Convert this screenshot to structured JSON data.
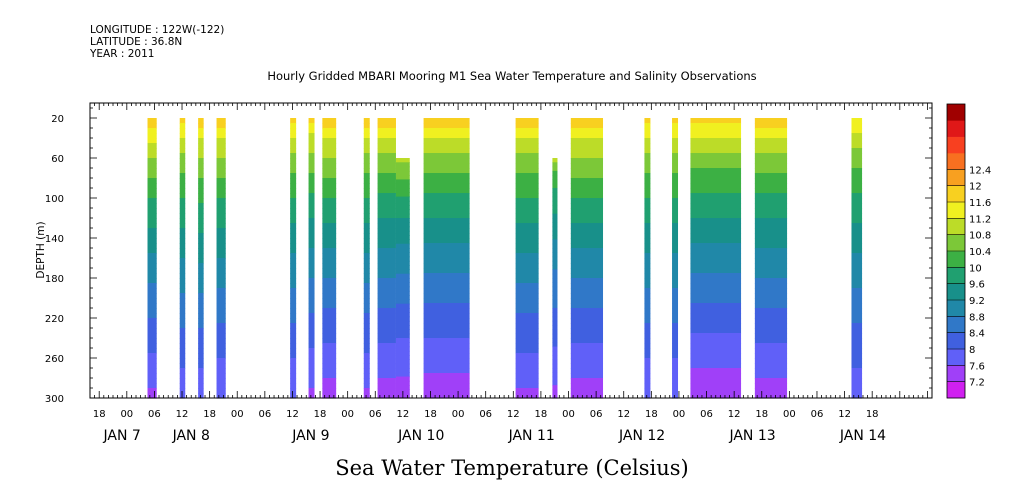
{
  "header": {
    "longitude": "LONGITUDE : 122W(-122)",
    "latitude": "LATITUDE : 36.8N",
    "year": "YEAR : 2011"
  },
  "chart_data": {
    "type": "heatmap",
    "title": "Hourly Gridded MBARI Mooring M1 Sea Water Temperature and Salinity Observations",
    "bottom_title": "Sea Water Temperature (Celsius)",
    "ylabel": "DEPTH (m)",
    "y_inverted": true,
    "ylim": [
      300,
      5
    ],
    "y_ticks": [
      20,
      60,
      100,
      140,
      180,
      220,
      260,
      300
    ],
    "x_hours_range": [
      -8,
      175
    ],
    "x_hour_tick_labels": [
      "18",
      "00",
      "06",
      "12",
      "18",
      "00",
      "06",
      "12",
      "18",
      "00",
      "06",
      "12",
      "18",
      "00",
      "06",
      "12",
      "18",
      "00",
      "06",
      "12",
      "18",
      "00",
      "06",
      "12",
      "18",
      "00",
      "06",
      "12",
      "18"
    ],
    "x_hour_tick_positions_hours": [
      -6,
      0,
      6,
      12,
      18,
      24,
      30,
      36,
      42,
      48,
      54,
      60,
      66,
      72,
      78,
      84,
      90,
      96,
      102,
      108,
      114,
      120,
      126,
      132,
      138,
      144,
      150,
      156,
      162
    ],
    "day_labels": [
      {
        "text": "JAN  7",
        "hour": -1
      },
      {
        "text": "JAN  8",
        "hour": 14
      },
      {
        "text": "JAN  9",
        "hour": 40
      },
      {
        "text": "JAN 10",
        "hour": 64
      },
      {
        "text": "JAN 11",
        "hour": 88
      },
      {
        "text": "JAN 12",
        "hour": 112
      },
      {
        "text": "JAN 13",
        "hour": 136
      },
      {
        "text": "JAN 14",
        "hour": 160
      }
    ],
    "colorbar": {
      "levels": [
        7.2,
        7.6,
        8,
        8.4,
        8.8,
        9.2,
        9.6,
        10,
        10.4,
        10.8,
        11.2,
        11.6,
        12,
        12.4
      ],
      "colors": [
        "#d020f0",
        "#a040f8",
        "#6060f8",
        "#4060e0",
        "#3078c8",
        "#2088a8",
        "#18908a",
        "#20a070",
        "#3cb044",
        "#7cc838",
        "#bcdc28",
        "#f0f020",
        "#f8d020",
        "#f8a020",
        "#f87020",
        "#f84020",
        "#e01818",
        "#a00000"
      ]
    },
    "data_blocks": [
      {
        "start": 4.5,
        "end": 6.5,
        "top": 20,
        "bottom": 300,
        "surface": 12.2,
        "bottom_temp": 7.5
      },
      {
        "start": 11.5,
        "end": 12.7,
        "top": 20,
        "bottom": 300,
        "surface": 12.0,
        "bottom_temp": 7.7
      },
      {
        "start": 15.5,
        "end": 16.7,
        "top": 20,
        "bottom": 300,
        "surface": 12.1,
        "bottom_temp": 7.7
      },
      {
        "start": 19.5,
        "end": 21.5,
        "top": 20,
        "bottom": 300,
        "surface": 12.1,
        "bottom_temp": 7.6
      },
      {
        "start": 35.5,
        "end": 36.8,
        "top": 20,
        "bottom": 300,
        "surface": 12.0,
        "bottom_temp": 7.6
      },
      {
        "start": 39.5,
        "end": 40.8,
        "top": 20,
        "bottom": 300,
        "surface": 12.0,
        "bottom_temp": 7.5
      },
      {
        "start": 42.5,
        "end": 45.5,
        "top": 20,
        "bottom": 300,
        "surface": 12.2,
        "bottom_temp": 7.4
      },
      {
        "start": 51.5,
        "end": 52.8,
        "top": 20,
        "bottom": 300,
        "surface": 12.1,
        "bottom_temp": 7.5
      },
      {
        "start": 54.5,
        "end": 58.5,
        "top": 20,
        "bottom": 300,
        "surface": 12.1,
        "bottom_temp": 7.4
      },
      {
        "start": 58.5,
        "end": 61.5,
        "top": 60,
        "bottom": 300,
        "surface": 11.2,
        "bottom_temp": 7.4
      },
      {
        "start": 64.5,
        "end": 74.5,
        "top": 20,
        "bottom": 300,
        "surface": 12.2,
        "bottom_temp": 7.3
      },
      {
        "start": 84.5,
        "end": 89.5,
        "top": 20,
        "bottom": 300,
        "surface": 12.1,
        "bottom_temp": 7.5
      },
      {
        "start": 92.5,
        "end": 93.6,
        "top": 60,
        "bottom": 300,
        "surface": 11.0,
        "bottom_temp": 7.5
      },
      {
        "start": 96.5,
        "end": 103.5,
        "top": 20,
        "bottom": 300,
        "surface": 12.2,
        "bottom_temp": 7.4
      },
      {
        "start": 112.5,
        "end": 113.8,
        "top": 20,
        "bottom": 300,
        "surface": 12.0,
        "bottom_temp": 7.6
      },
      {
        "start": 118.5,
        "end": 119.8,
        "top": 20,
        "bottom": 300,
        "surface": 12.0,
        "bottom_temp": 7.6
      },
      {
        "start": 122.5,
        "end": 133.5,
        "top": 20,
        "bottom": 300,
        "surface": 12.1,
        "bottom_temp": 7.3
      },
      {
        "start": 136.5,
        "end": 143.5,
        "top": 20,
        "bottom": 300,
        "surface": 12.1,
        "bottom_temp": 7.4
      },
      {
        "start": 157.5,
        "end": 159.8,
        "top": 20,
        "bottom": 300,
        "surface": 11.8,
        "bottom_temp": 7.7
      }
    ]
  }
}
